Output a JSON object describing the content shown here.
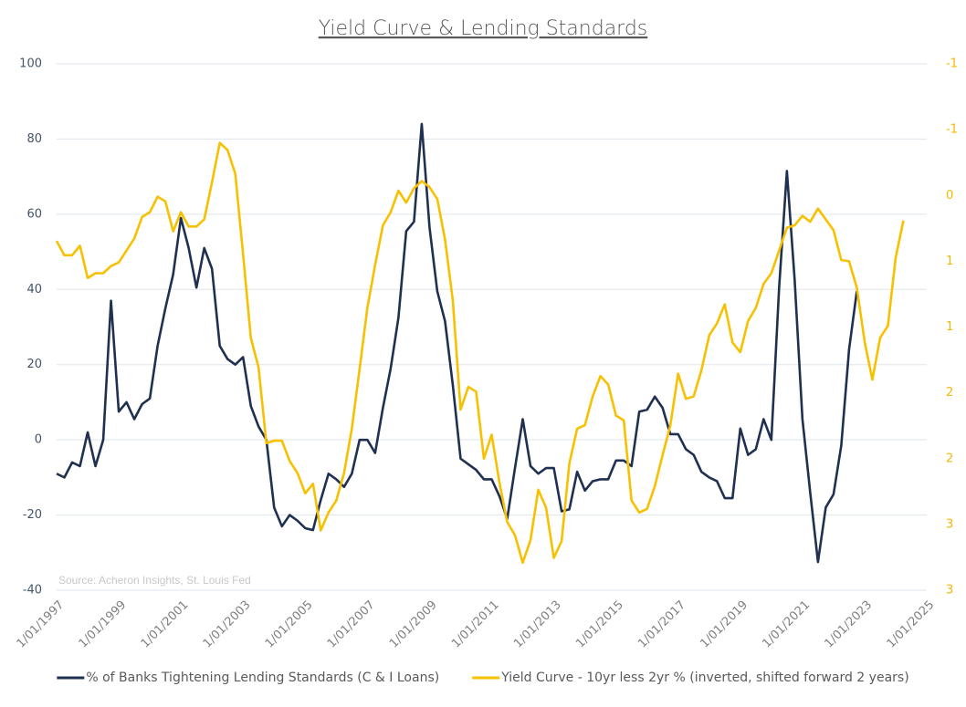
{
  "chart_data": {
    "type": "line",
    "title": "Yield Curve & Lending Standards",
    "source": "Source: Acheron Insights, St. Louis Fed",
    "xlim": [
      1997,
      2025
    ],
    "xticks": [
      {
        "value": 1997,
        "label": "1/01/1997"
      },
      {
        "value": 1999,
        "label": "1/01/1999"
      },
      {
        "value": 2001,
        "label": "1/01/2001"
      },
      {
        "value": 2003,
        "label": "1/01/2003"
      },
      {
        "value": 2005,
        "label": "1/01/2005"
      },
      {
        "value": 2007,
        "label": "1/01/2007"
      },
      {
        "value": 2009,
        "label": "1/01/2009"
      },
      {
        "value": 2011,
        "label": "1/01/2011"
      },
      {
        "value": 2013,
        "label": "1/01/2013"
      },
      {
        "value": 2015,
        "label": "1/01/2015"
      },
      {
        "value": 2017,
        "label": "1/01/2017"
      },
      {
        "value": 2019,
        "label": "1/01/2019"
      },
      {
        "value": 2021,
        "label": "1/01/2021"
      },
      {
        "value": 2023,
        "label": "1/01/2023"
      },
      {
        "value": 2025,
        "label": "1/01/2025"
      }
    ],
    "ylim": [
      -40,
      100
    ],
    "yticks": [
      -40,
      -20,
      0,
      20,
      40,
      60,
      80,
      100
    ],
    "y2lim": [
      -1.1,
      3.3
    ],
    "y2_inverted": true,
    "y2ticks": [
      {
        "value": -1.1,
        "label": "-1"
      },
      {
        "value": -0.55,
        "label": "-1"
      },
      {
        "value": 0,
        "label": "0"
      },
      {
        "value": 0.55,
        "label": "1"
      },
      {
        "value": 1.1,
        "label": "1"
      },
      {
        "value": 1.65,
        "label": "2"
      },
      {
        "value": 2.2,
        "label": "2"
      },
      {
        "value": 2.75,
        "label": "3"
      },
      {
        "value": 3.3,
        "label": "3"
      }
    ],
    "grid": true,
    "legend": "bottom",
    "series": [
      {
        "name": "% of Banks Tightening Lending Standards (C & I Loans)",
        "color": "#1f3050",
        "x": [
          1997,
          1997.25,
          1997.5,
          1997.75,
          1998,
          1998.25,
          1998.5,
          1998.75,
          1999,
          1999.25,
          1999.5,
          1999.75,
          2000,
          2000.25,
          2000.5,
          2000.75,
          2001,
          2001.25,
          2001.5,
          2001.75,
          2002,
          2002.25,
          2002.5,
          2002.75,
          2003,
          2003.25,
          2003.5,
          2003.75,
          2004,
          2004.25,
          2004.5,
          2004.75,
          2005,
          2005.25,
          2005.5,
          2005.75,
          2006,
          2006.25,
          2006.5,
          2006.75,
          2007,
          2007.25,
          2007.5,
          2007.75,
          2008,
          2008.25,
          2008.5,
          2008.75,
          2009,
          2009.25,
          2009.5,
          2009.75,
          2010,
          2010.25,
          2010.5,
          2010.75,
          2011,
          2011.25,
          2011.5,
          2011.75,
          2012,
          2012.25,
          2012.5,
          2012.75,
          2013,
          2013.25,
          2013.5,
          2013.75,
          2014,
          2014.25,
          2014.5,
          2014.75,
          2015,
          2015.25,
          2015.5,
          2015.75,
          2016,
          2016.25,
          2016.5,
          2016.75,
          2017,
          2017.25,
          2017.5,
          2017.75,
          2018,
          2018.25,
          2018.5,
          2018.75,
          2019,
          2019.25,
          2019.5,
          2019.75,
          2020,
          2020.25,
          2020.5,
          2020.75,
          2021,
          2021.25,
          2021.5,
          2021.75,
          2022,
          2022.25,
          2022.5,
          2022.75
        ],
        "values": [
          -9,
          -10,
          -6,
          -7,
          2,
          -7,
          0,
          37,
          7.5,
          10,
          5.5,
          9.5,
          11,
          25,
          35,
          44,
          59,
          51,
          40.5,
          51,
          45.5,
          25,
          21.5,
          20,
          22,
          9,
          3.5,
          0,
          -18,
          -23,
          -20,
          -21.5,
          -23.5,
          -24,
          -16,
          -9,
          -10.5,
          -12.5,
          -9,
          0,
          0,
          -3.5,
          8.5,
          19,
          32.5,
          55.5,
          58,
          84,
          56.5,
          39.5,
          31.5,
          14.5,
          -5,
          -6.5,
          -8,
          -10.5,
          -10.5,
          -15,
          -21,
          -7.5,
          5.5,
          -7,
          -9,
          -7.5,
          -7.5,
          -19,
          -18.5,
          -8.5,
          -13.5,
          -11,
          -10.5,
          -10.5,
          -5.5,
          -5.5,
          -7,
          7.5,
          8,
          11.5,
          8.5,
          1.5,
          1.5,
          -2.5,
          -4,
          -8.5,
          -10,
          -11,
          -15.5,
          -15.5,
          3,
          -4,
          -2.5,
          5.5,
          0,
          40.5,
          71.5,
          42.5,
          5.5,
          -14,
          -32.5,
          -18,
          -14.5,
          -1.5,
          24,
          39.5
        ]
      },
      {
        "name": "Yield Curve - 10yr less 2yr % (inverted, shifted forward 2 years)",
        "color": "#f7c000",
        "axis": "y2",
        "x": [
          1997,
          1997.25,
          1997.5,
          1997.75,
          1998,
          1998.25,
          1998.5,
          1998.75,
          1999,
          1999.25,
          1999.5,
          1999.75,
          2000,
          2000.25,
          2000.5,
          2000.75,
          2001,
          2001.25,
          2001.5,
          2001.75,
          2002,
          2002.25,
          2002.5,
          2002.75,
          2003,
          2003.25,
          2003.5,
          2003.75,
          2004,
          2004.25,
          2004.5,
          2004.75,
          2005,
          2005.25,
          2005.5,
          2005.75,
          2006,
          2006.25,
          2006.5,
          2006.75,
          2007,
          2007.25,
          2007.5,
          2007.75,
          2008,
          2008.25,
          2008.5,
          2008.75,
          2009,
          2009.25,
          2009.5,
          2009.75,
          2010,
          2010.25,
          2010.5,
          2010.75,
          2011,
          2011.25,
          2011.5,
          2011.75,
          2012,
          2012.25,
          2012.5,
          2012.75,
          2013,
          2013.25,
          2013.5,
          2013.75,
          2014,
          2014.25,
          2014.5,
          2014.75,
          2015,
          2015.25,
          2015.5,
          2015.75,
          2016,
          2016.25,
          2016.5,
          2016.75,
          2017,
          2017.25,
          2017.5,
          2017.75,
          2018,
          2018.25,
          2018.5,
          2018.75,
          2019,
          2019.25,
          2019.5,
          2019.75,
          2020,
          2020.25,
          2020.5,
          2020.75,
          2021,
          2021.25,
          2021.5,
          2021.75,
          2022,
          2022.25,
          2022.5,
          2022.75,
          2023,
          2023.25,
          2023.5,
          2023.75,
          2024,
          2024.25
        ],
        "values": [
          0.38,
          0.5,
          0.5,
          0.42,
          0.69,
          0.65,
          0.65,
          0.59,
          0.56,
          0.46,
          0.36,
          0.18,
          0.14,
          0.01,
          0.05,
          0.3,
          0.14,
          0.26,
          0.26,
          0.2,
          -0.11,
          -0.44,
          -0.38,
          -0.18,
          0.49,
          1.19,
          1.44,
          2.07,
          2.05,
          2.05,
          2.22,
          2.32,
          2.49,
          2.41,
          2.8,
          2.65,
          2.55,
          2.32,
          1.95,
          1.45,
          0.94,
          0.58,
          0.25,
          0.14,
          -0.04,
          0.06,
          -0.06,
          -0.12,
          -0.07,
          0.03,
          0.37,
          0.88,
          1.79,
          1.6,
          1.64,
          2.2,
          2.0,
          2.4,
          2.73,
          2.84,
          3.07,
          2.88,
          2.46,
          2.61,
          3.03,
          2.89,
          2.24,
          1.95,
          1.92,
          1.68,
          1.51,
          1.58,
          1.84,
          1.88,
          2.55,
          2.65,
          2.62,
          2.43,
          2.17,
          1.92,
          1.49,
          1.7,
          1.68,
          1.46,
          1.17,
          1.07,
          0.91,
          1.23,
          1.31,
          1.05,
          0.94,
          0.74,
          0.65,
          0.46,
          0.27,
          0.25,
          0.17,
          0.22,
          0.11,
          0.2,
          0.29,
          0.54,
          0.55,
          0.77,
          1.22,
          1.54,
          1.19,
          1.09,
          0.52,
          0.21
        ]
      }
    ]
  }
}
